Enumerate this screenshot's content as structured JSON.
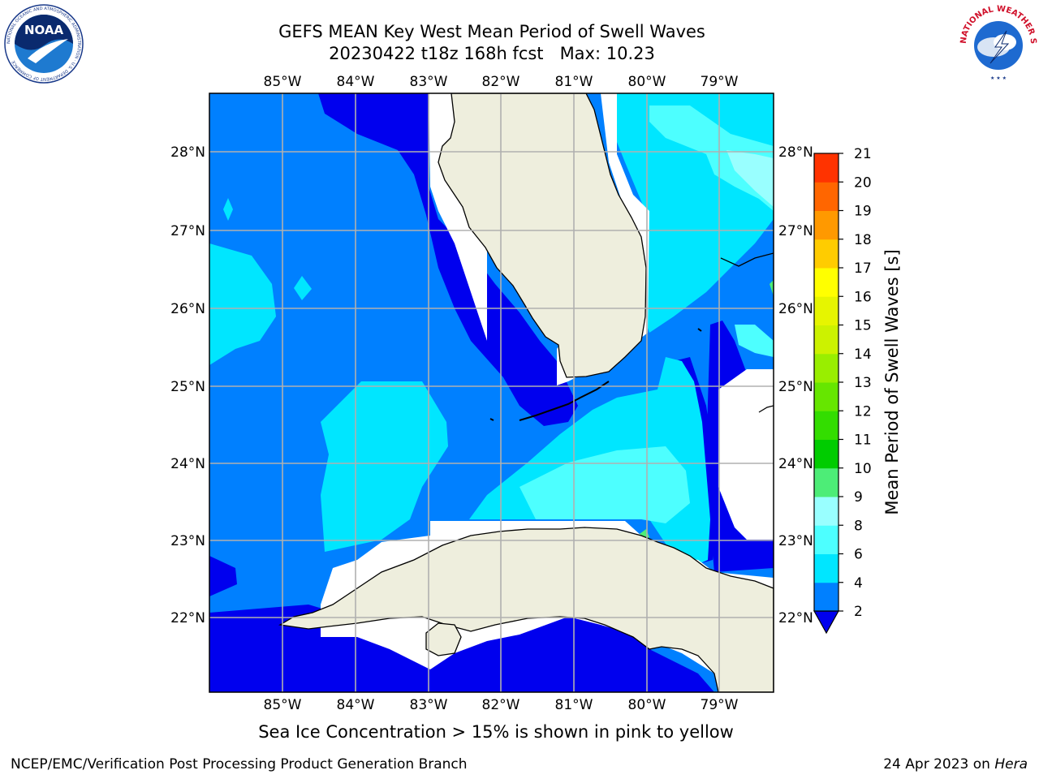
{
  "title": {
    "line1": "GEFS MEAN Key West Mean Period of Swell Waves",
    "line2": "20230422 t18z 168h fcst   Max: 10.23"
  },
  "logos": {
    "noaa_text": "NOAA",
    "noaa_ring_text": "NATIONAL OCEANIC AND ATMOSPHERIC ADMINISTRATION · U.S. DEPARTMENT OF COMMERCE",
    "nws_ring_text": "NATIONAL WEATHER SERVICE"
  },
  "map": {
    "lon_labels": [
      "85°W",
      "84°W",
      "83°W",
      "82°W",
      "81°W",
      "80°W",
      "79°W"
    ],
    "lat_labels": [
      "28°N",
      "27°N",
      "26°N",
      "25°N",
      "24°N",
      "23°N",
      "22°N"
    ],
    "extent": {
      "lon_min": -86.0,
      "lon_max": -78.3,
      "lat_min": 21.0,
      "lat_max": 28.75
    },
    "colors": {
      "land": "#eeeedd",
      "no_data": "#ffffff",
      "grid": "#b0b0b0"
    }
  },
  "colorbar": {
    "label": "Mean Period of Swell Waves [s]",
    "ticks": [
      "2",
      "4",
      "6",
      "8",
      "9",
      "10",
      "11",
      "12",
      "13",
      "14",
      "15",
      "16",
      "17",
      "18",
      "19",
      "20",
      "21"
    ],
    "colors": [
      "#0080ff",
      "#00e6ff",
      "#4dffff",
      "#99ffff",
      "#4ded77",
      "#00cc00",
      "#33dd00",
      "#66e600",
      "#99ee00",
      "#ccf200",
      "#e6f500",
      "#ffff00",
      "#ffcc00",
      "#ff9900",
      "#ff6600",
      "#ff3300",
      "#ff0000"
    ],
    "under_color": "#0000ee"
  },
  "note": "Sea Ice Concentration > 15% is shown in pink to yellow",
  "footer": {
    "left": "NCEP/EMC/Verification Post Processing Product Generation Branch",
    "right_date": "24 Apr 2023 on ",
    "right_host": "Hera"
  }
}
